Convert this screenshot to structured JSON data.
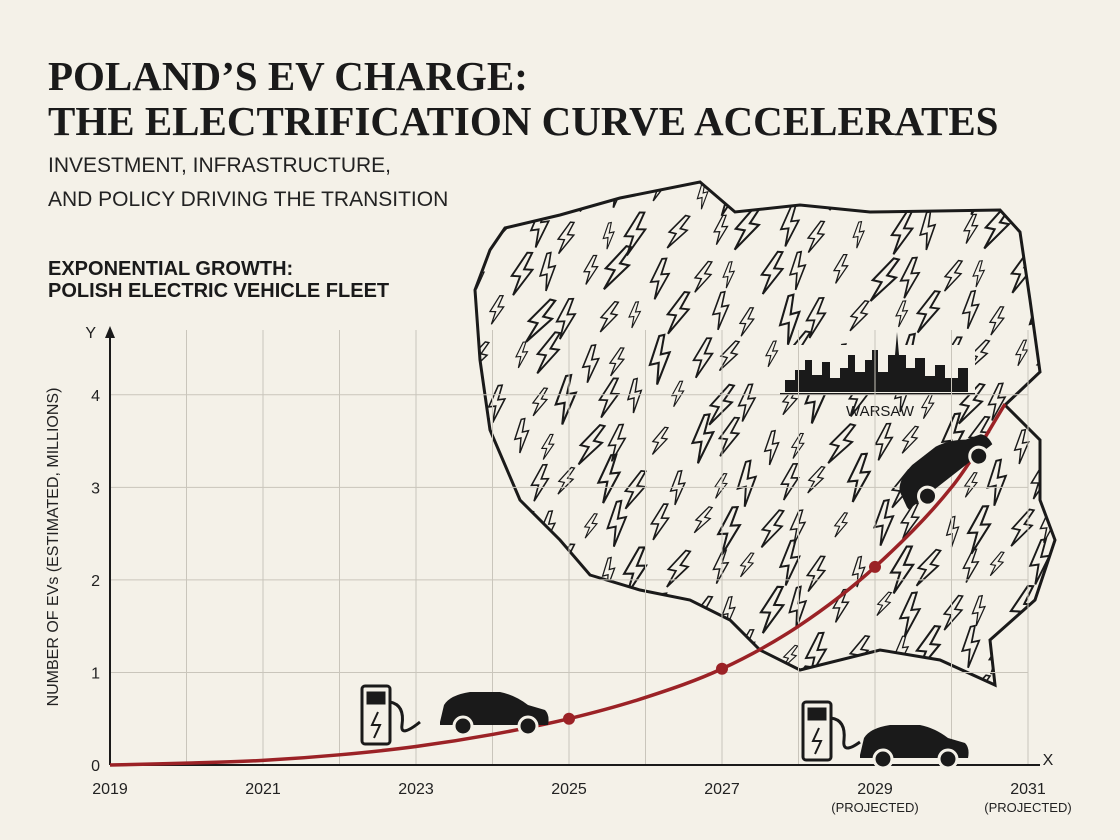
{
  "chart_data": {
    "type": "line",
    "title": "POLAND’S EV CHARGE:",
    "title_line2": "THE ELECTRIFICATION CURVE ACCELERATES",
    "subtitle": [
      "INVESTMENT, INFRASTRUCTURE,",
      "AND POLICY DRIVING THE TRANSITION"
    ],
    "chart_title": [
      "EXPONENTIAL GROWTH:",
      "POLISH ELECTRIC VEHICLE FLEET"
    ],
    "ylabel": "NUMBER OF EVs (ESTIMATED, MILLIONS)",
    "y_axis_letter": "Y",
    "x_axis_letter": "X",
    "annotation": "WARSAW",
    "xlim": [
      2019,
      2031
    ],
    "ylim": [
      0,
      4.7
    ],
    "xticks": [
      2019,
      2021,
      2023,
      2025,
      2027,
      {
        "value": 2029,
        "label": "2029",
        "sublabel": "(PROJECTED)"
      },
      {
        "value": 2031,
        "label": "2031",
        "sublabel": "(PROJECTED)"
      }
    ],
    "xminor": [
      2020,
      2022,
      2024,
      2026,
      2028,
      2030
    ],
    "yticks": [
      0,
      1,
      2,
      3,
      4
    ],
    "grid": true,
    "series": [
      {
        "name": "EV fleet",
        "color": "#9b2226",
        "x": [
          2019,
          2020,
          2021,
          2022,
          2023,
          2024,
          2025,
          2026,
          2027,
          2028,
          2029,
          2030,
          2030.7
        ],
        "values": [
          0,
          0.02,
          0.05,
          0.11,
          0.2,
          0.33,
          0.5,
          0.73,
          1.04,
          1.5,
          2.14,
          3.0,
          3.9
        ]
      }
    ],
    "points": {
      "color": "#9b2226",
      "x": [
        2025,
        2027,
        2029
      ],
      "values": [
        0.5,
        1.04,
        2.14
      ]
    }
  }
}
